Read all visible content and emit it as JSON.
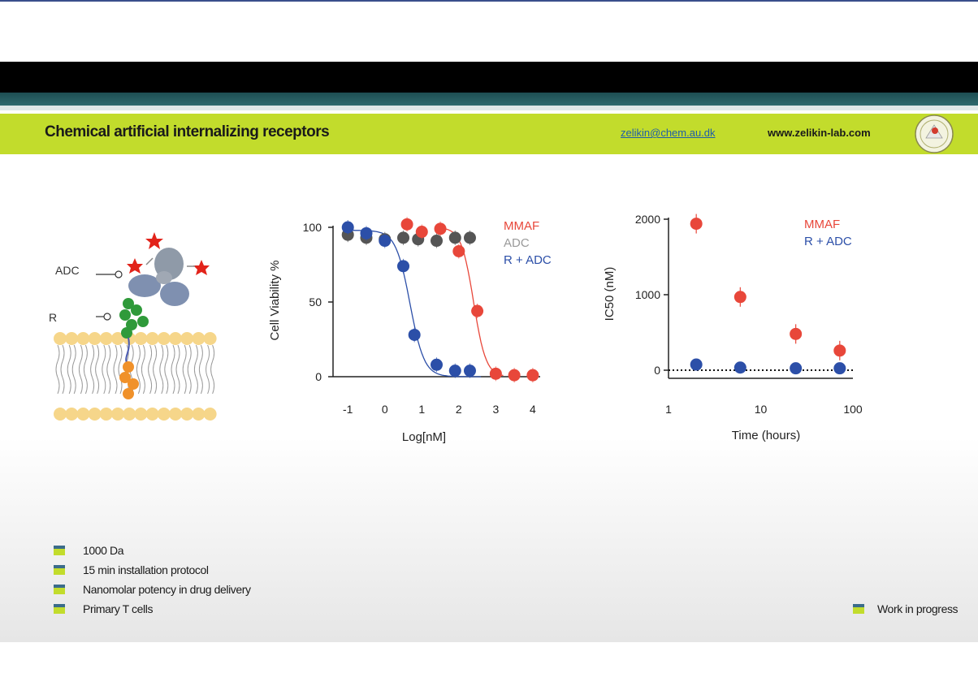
{
  "header": {
    "title": "Chemical artificial internalizing receptors",
    "email": "zelikin@chem.au.dk",
    "website": "www.zelikin-lab.com"
  },
  "diagram": {
    "label_adc": "ADC",
    "label_r": "R"
  },
  "bullets": [
    "1000 Da",
    "15 min installation protocol",
    "Nanomolar potency in drug delivery",
    "Primary T cells"
  ],
  "footer_note": "Work in progress",
  "colors": {
    "accent": "#c2dc2c",
    "mmaf": "#e8473a",
    "adc": "#555555",
    "r_adc": "#2c4fa8"
  },
  "chart_data": [
    {
      "type": "scatter",
      "xlabel": "Log[nM]",
      "ylabel": "Cell Viability %",
      "xlim": [
        -1.4,
        4.2
      ],
      "ylim": [
        0,
        100
      ],
      "xticks": [
        "-1",
        "0",
        "1",
        "2",
        "3",
        "4"
      ],
      "yticks": [
        "0",
        "50",
        "100"
      ],
      "legend_position": "top-right",
      "series": [
        {
          "name": "MMAF",
          "color": "#e8473a",
          "x": [
            0.6,
            1.0,
            1.5,
            2.0,
            2.5,
            3.0,
            3.5,
            4.0
          ],
          "y": [
            102,
            97,
            99,
            84,
            44,
            2,
            1,
            1
          ]
        },
        {
          "name": "ADC",
          "color": "#555555",
          "x": [
            -1.0,
            -0.5,
            0.0,
            0.5,
            0.9,
            1.4,
            1.9,
            2.3
          ],
          "y": [
            95,
            93,
            92,
            93,
            92,
            91,
            93,
            93
          ]
        },
        {
          "name": "R + ADC",
          "color": "#2c4fa8",
          "x": [
            -1.0,
            -0.5,
            0.0,
            0.5,
            0.8,
            1.4,
            1.9,
            2.3
          ],
          "y": [
            100,
            96,
            91,
            74,
            28,
            8,
            4,
            4
          ]
        }
      ]
    },
    {
      "type": "scatter",
      "xlabel": "Time (hours)",
      "ylabel": "IC50 (nM)",
      "xscale": "log",
      "xlim": [
        1,
        100
      ],
      "ylim": [
        0,
        2000
      ],
      "xticks": [
        "1",
        "10",
        "100"
      ],
      "yticks": [
        "0",
        "1000",
        "2000"
      ],
      "legend_position": "top-right",
      "series": [
        {
          "name": "MMAF",
          "color": "#e8473a",
          "x": [
            2,
            6,
            24,
            72
          ],
          "y": [
            1940,
            970,
            480,
            260
          ]
        },
        {
          "name": "R + ADC",
          "color": "#2c4fa8",
          "x": [
            2,
            6,
            24,
            72
          ],
          "y": [
            75,
            35,
            25,
            25
          ]
        }
      ]
    }
  ]
}
